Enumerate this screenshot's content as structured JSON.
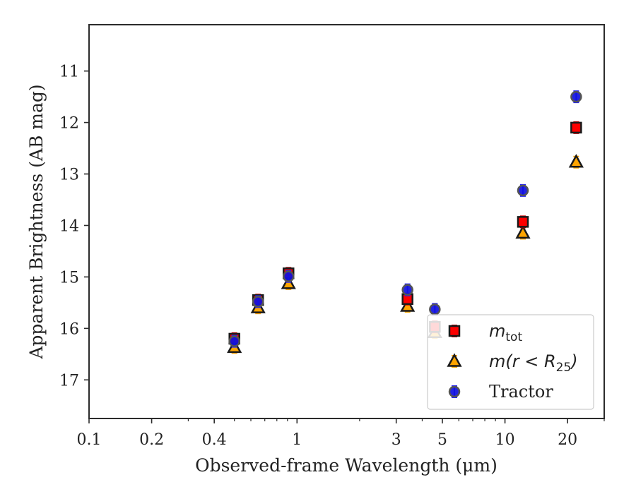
{
  "chart_data": {
    "type": "scatter",
    "xlabel": "Observed-frame Wavelength (μm)",
    "ylabel": "Apparent Brightness (AB mag)",
    "x_scale": "log",
    "y_inverted": true,
    "xlim": [
      0.1,
      30
    ],
    "ylim": [
      17.75,
      10.1
    ],
    "x_ticks": [
      0.1,
      0.2,
      0.4,
      1,
      3,
      5,
      10,
      20
    ],
    "x_tick_labels": [
      "0.1",
      "0.2",
      "0.4",
      "1",
      "3",
      "5",
      "10",
      "20"
    ],
    "y_ticks": [
      11,
      12,
      13,
      14,
      15,
      16,
      17
    ],
    "y_tick_labels": [
      "11",
      "12",
      "13",
      "14",
      "15",
      "16",
      "17"
    ],
    "legend_position": "lower-right",
    "series": [
      {
        "name": "m_tot",
        "legend": {
          "base": "m",
          "sub": "tot"
        },
        "marker": "square",
        "color": "#ff0000",
        "error_color": "#cc0000",
        "x": [
          0.5,
          0.65,
          0.91,
          3.4,
          4.6,
          12.2,
          22.0
        ],
        "y": [
          16.2,
          15.45,
          14.93,
          15.43,
          15.97,
          13.93,
          12.1
        ]
      },
      {
        "name": "m(r<R25)",
        "legend": {
          "base": "m(r < R",
          "sub": "25",
          "close": ")"
        },
        "marker": "triangle",
        "color": "#ffa500",
        "error_color": "#ffa500",
        "x": [
          0.5,
          0.65,
          0.91,
          3.4,
          4.6,
          12.2,
          22.0
        ],
        "y": [
          16.37,
          15.6,
          15.13,
          15.57,
          16.08,
          14.15,
          12.77
        ]
      },
      {
        "name": "Tractor",
        "legend": {
          "base": "Tractor"
        },
        "marker": "circle",
        "color": "#1010e0",
        "error_color": "#2020ff",
        "x": [
          0.5,
          0.65,
          0.91,
          3.4,
          4.6,
          12.2,
          22.0
        ],
        "y": [
          16.25,
          15.48,
          14.99,
          15.25,
          15.63,
          13.32,
          11.5
        ]
      }
    ]
  }
}
